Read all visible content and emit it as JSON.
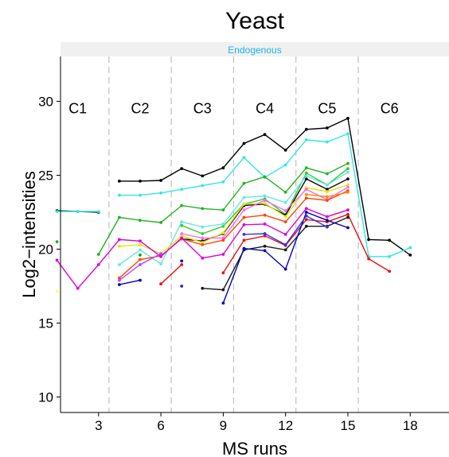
{
  "chart_data": {
    "type": "line",
    "title": "Yeast",
    "strip_label": "Endogenous",
    "xlabel": "MS runs",
    "ylabel": "Log2−intensities",
    "xlim": [
      0.5,
      18.5
    ],
    "ylim": [
      9,
      33
    ],
    "x_ticks": [
      3,
      6,
      9,
      12,
      15,
      18
    ],
    "y_ticks": [
      10,
      15,
      20,
      25,
      30
    ],
    "condition_boundaries": [
      3.5,
      6.5,
      9.5,
      12.5,
      15.5
    ],
    "conditions": [
      {
        "label": "C1",
        "x": 2
      },
      {
        "label": "C2",
        "x": 5
      },
      {
        "label": "C3",
        "x": 8
      },
      {
        "label": "C4",
        "x": 11
      },
      {
        "label": "C5",
        "x": 14
      },
      {
        "label": "C6",
        "x": 17
      }
    ],
    "condition_label_y": 29.2,
    "colors": {
      "strip_bg": "#f0f0f0",
      "strip_text": "#1ab2e8",
      "divider": "#c0c0c0"
    },
    "series": [
      {
        "color": "#000000",
        "points": [
          [
            1,
            22.6
          ],
          [
            2,
            22.55
          ],
          [
            3,
            22.5
          ],
          null,
          [
            4,
            24.6
          ],
          [
            5,
            24.6
          ],
          [
            6,
            24.65
          ],
          [
            7,
            25.45
          ],
          [
            8,
            24.95
          ],
          [
            9,
            25.5
          ],
          [
            10,
            27.15
          ],
          [
            11,
            27.75
          ],
          [
            12,
            26.7
          ],
          [
            13,
            28.1
          ],
          [
            14,
            28.2
          ],
          [
            15,
            28.85
          ],
          [
            16,
            20.65
          ],
          [
            17,
            20.6
          ],
          [
            18,
            19.6
          ]
        ]
      },
      {
        "color": "#33e6e6",
        "points": [
          [
            1,
            22.55
          ],
          [
            2,
            22.55
          ],
          [
            3,
            22.55
          ],
          null,
          [
            4,
            23.65
          ],
          [
            5,
            23.65
          ],
          [
            6,
            23.8
          ],
          [
            7,
            24.05
          ],
          [
            8,
            24.3
          ],
          [
            9,
            24.55
          ],
          [
            10,
            26.2
          ],
          [
            11,
            24.85
          ],
          [
            12,
            25.7
          ],
          [
            13,
            27.4
          ],
          [
            14,
            27.25
          ],
          [
            15,
            27.8
          ],
          [
            16,
            19.5
          ],
          [
            17,
            19.5
          ],
          [
            18,
            20.1
          ]
        ]
      },
      {
        "color": "#22b422",
        "points": [
          [
            1,
            20.5
          ],
          null,
          [
            3,
            19.65
          ],
          [
            4,
            22.15
          ],
          [
            5,
            21.95
          ],
          [
            6,
            21.8
          ],
          [
            7,
            22.95
          ],
          [
            8,
            22.75
          ],
          [
            9,
            22.65
          ],
          [
            10,
            24.45
          ],
          [
            11,
            24.9
          ],
          [
            12,
            23.85
          ],
          [
            13,
            25.5
          ],
          [
            14,
            25.1
          ],
          [
            15,
            25.8
          ]
        ]
      },
      {
        "color": "#33cc33",
        "points": [
          [
            7,
            21.6
          ],
          [
            8,
            21.05
          ],
          [
            9,
            21.55
          ],
          [
            10,
            23.05
          ],
          [
            11,
            23.4
          ],
          [
            12,
            22.35
          ],
          [
            13,
            25.15
          ],
          [
            14,
            24.35
          ],
          [
            15,
            25.45
          ]
        ]
      },
      {
        "color": "#0a0a0a",
        "points": [
          [
            7,
            20.7
          ],
          [
            8,
            20.55
          ],
          [
            9,
            21.05
          ],
          [
            10,
            22.95
          ],
          [
            11,
            23.05
          ],
          [
            12,
            22.3
          ],
          [
            13,
            24.75
          ],
          [
            14,
            24.05
          ],
          [
            15,
            24.75
          ]
        ]
      },
      {
        "color": "#66e6e6",
        "points": [
          [
            4,
            18.95
          ],
          [
            5,
            19.95
          ],
          [
            6,
            19.0
          ],
          [
            7,
            21.85
          ],
          [
            8,
            21.5
          ],
          [
            9,
            21.7
          ],
          [
            10,
            23.5
          ],
          [
            11,
            23.6
          ],
          [
            12,
            23.15
          ],
          [
            13,
            24.95
          ],
          [
            14,
            24.35
          ],
          [
            15,
            25.2
          ]
        ]
      },
      {
        "color": "#e6e600",
        "points": [
          [
            4,
            20.2
          ],
          [
            5,
            20.3
          ],
          [
            6,
            19.7
          ],
          [
            7,
            20.9
          ],
          [
            8,
            20.45
          ],
          [
            9,
            21.1
          ],
          [
            10,
            23.05
          ],
          [
            11,
            23.1
          ],
          [
            12,
            22.2
          ],
          [
            13,
            24.15
          ],
          [
            14,
            23.9
          ],
          [
            15,
            24.35
          ]
        ]
      },
      {
        "color": "#ff66ff",
        "points": [
          [
            7,
            21.05
          ],
          [
            8,
            20.75
          ],
          [
            9,
            20.75
          ],
          [
            10,
            22.65
          ],
          [
            11,
            23.3
          ],
          [
            12,
            22.6
          ],
          [
            13,
            24.05
          ],
          [
            14,
            23.35
          ],
          [
            15,
            24.2
          ]
        ]
      },
      {
        "color": "#ff4400",
        "points": [
          [
            4,
            18.05
          ],
          [
            5,
            19.3
          ],
          [
            6,
            19.55
          ],
          [
            7,
            20.7
          ],
          [
            8,
            20.3
          ],
          [
            9,
            20.6
          ],
          [
            10,
            22.15
          ],
          [
            11,
            22.3
          ],
          [
            12,
            21.85
          ],
          [
            13,
            23.45
          ],
          [
            14,
            23.3
          ],
          [
            15,
            23.95
          ]
        ]
      },
      {
        "color": "#dd00dd",
        "points": [
          [
            1,
            19.25
          ],
          [
            2,
            17.35
          ],
          [
            3,
            18.95
          ],
          [
            4,
            20.65
          ],
          [
            5,
            20.55
          ],
          [
            6,
            19.5
          ],
          [
            7,
            20.75
          ],
          [
            8,
            19.4
          ],
          [
            9,
            19.65
          ],
          [
            10,
            21.65
          ],
          [
            11,
            21.7
          ],
          [
            12,
            21.0
          ],
          [
            13,
            22.75
          ],
          [
            14,
            22.2
          ],
          [
            15,
            22.65
          ]
        ]
      },
      {
        "color": "#ee1111",
        "points": [
          null,
          [
            6,
            17.65
          ],
          [
            7,
            18.95
          ],
          null,
          [
            9,
            18.4
          ],
          [
            10,
            20.6
          ],
          [
            11,
            20.9
          ],
          [
            12,
            20.25
          ],
          [
            13,
            22.0
          ],
          [
            14,
            21.85
          ],
          [
            15,
            22.35
          ],
          [
            16,
            19.35
          ],
          [
            17,
            18.5
          ]
        ]
      },
      {
        "color": "#ff8800",
        "points": [
          [
            13,
            23.7
          ],
          [
            14,
            23.55
          ],
          [
            15,
            23.85
          ]
        ]
      },
      {
        "color": "#1a1a1a",
        "points": [
          [
            8,
            17.35
          ],
          [
            9,
            17.25
          ],
          [
            10,
            19.95
          ],
          [
            11,
            20.2
          ],
          [
            12,
            19.95
          ],
          [
            13,
            21.55
          ],
          [
            14,
            21.55
          ],
          [
            15,
            22.15
          ]
        ]
      },
      {
        "color": "#0000bb",
        "points": [
          [
            4,
            17.6
          ],
          [
            5,
            17.9
          ],
          null,
          [
            7,
            19.2
          ],
          null,
          [
            9,
            16.35
          ],
          [
            10,
            20.05
          ],
          [
            11,
            19.9
          ],
          [
            12,
            18.65
          ],
          [
            13,
            22.5
          ],
          [
            14,
            21.95
          ],
          [
            15,
            21.45
          ]
        ]
      },
      {
        "color": "#3333ee",
        "points": [
          [
            10,
            21.0
          ],
          [
            11,
            21.05
          ],
          [
            12,
            20.3
          ],
          [
            13,
            22.25
          ],
          [
            14,
            21.5
          ]
        ]
      },
      {
        "color": "#bb44ff",
        "points": [
          [
            4,
            17.9
          ],
          [
            5,
            18.95
          ],
          [
            6,
            19.7
          ]
        ]
      },
      {
        "color": "#00aa00",
        "points": [
          [
            5,
            19.6
          ]
        ]
      },
      {
        "color": "#ffff66",
        "points": [
          [
            1,
            17.15
          ]
        ]
      },
      {
        "color": "#2222dd",
        "points": [
          [
            7,
            17.5
          ]
        ]
      }
    ]
  }
}
